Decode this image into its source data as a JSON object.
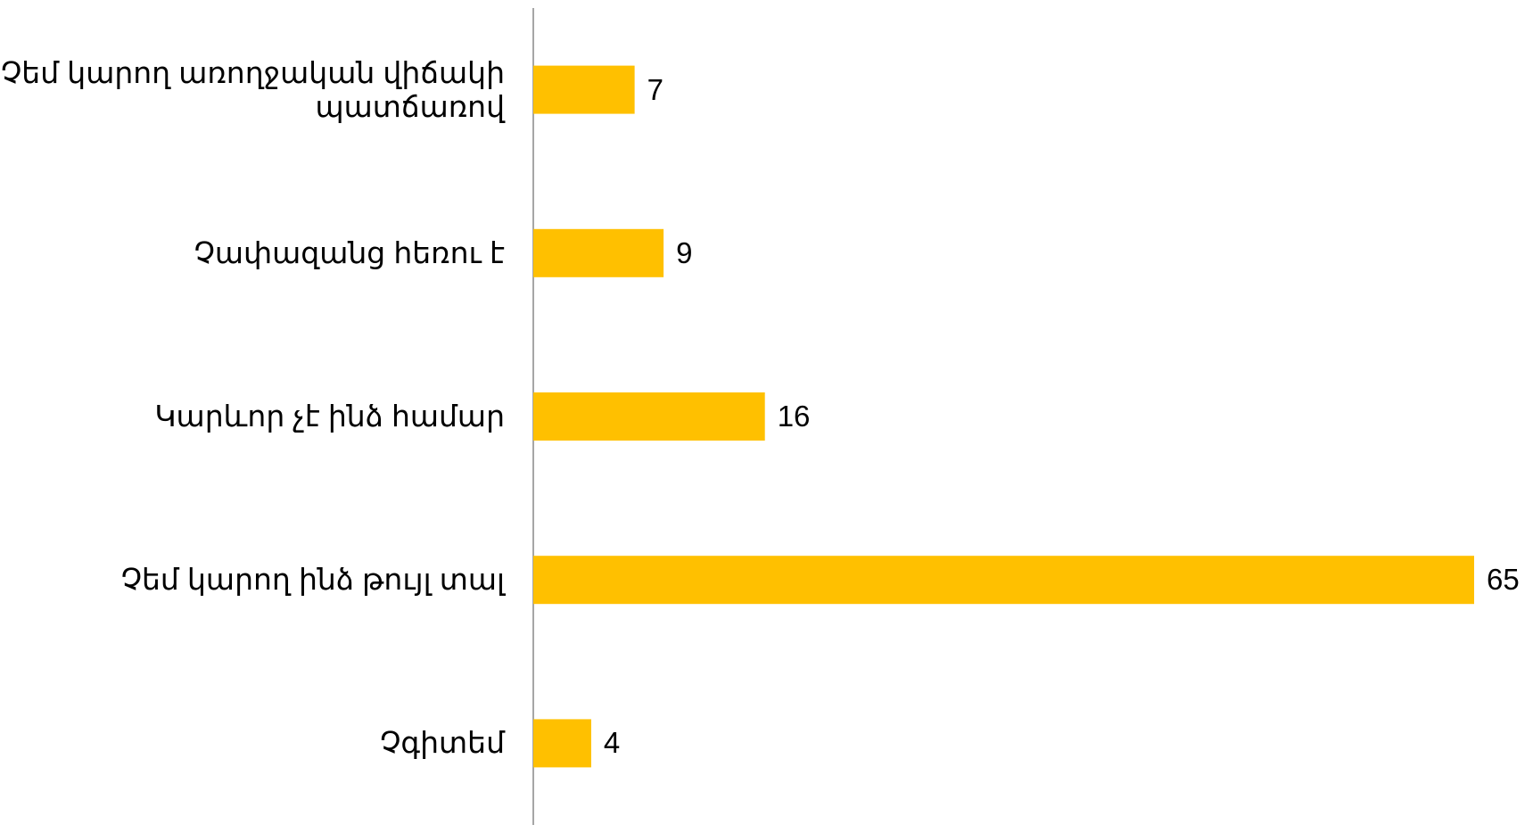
{
  "chart_data": {
    "type": "bar",
    "orientation": "horizontal",
    "categories": [
      "Չեմ կարող առողջական վիճակի պատճառով",
      "Չափազանց հեռու է",
      "Կարևոր չէ ինձ համար",
      "Չեմ կարող ինձ թույլ տալ",
      "Չգիտեմ"
    ],
    "values": [
      7,
      9,
      16,
      65,
      4
    ],
    "color": "#FFC000"
  }
}
